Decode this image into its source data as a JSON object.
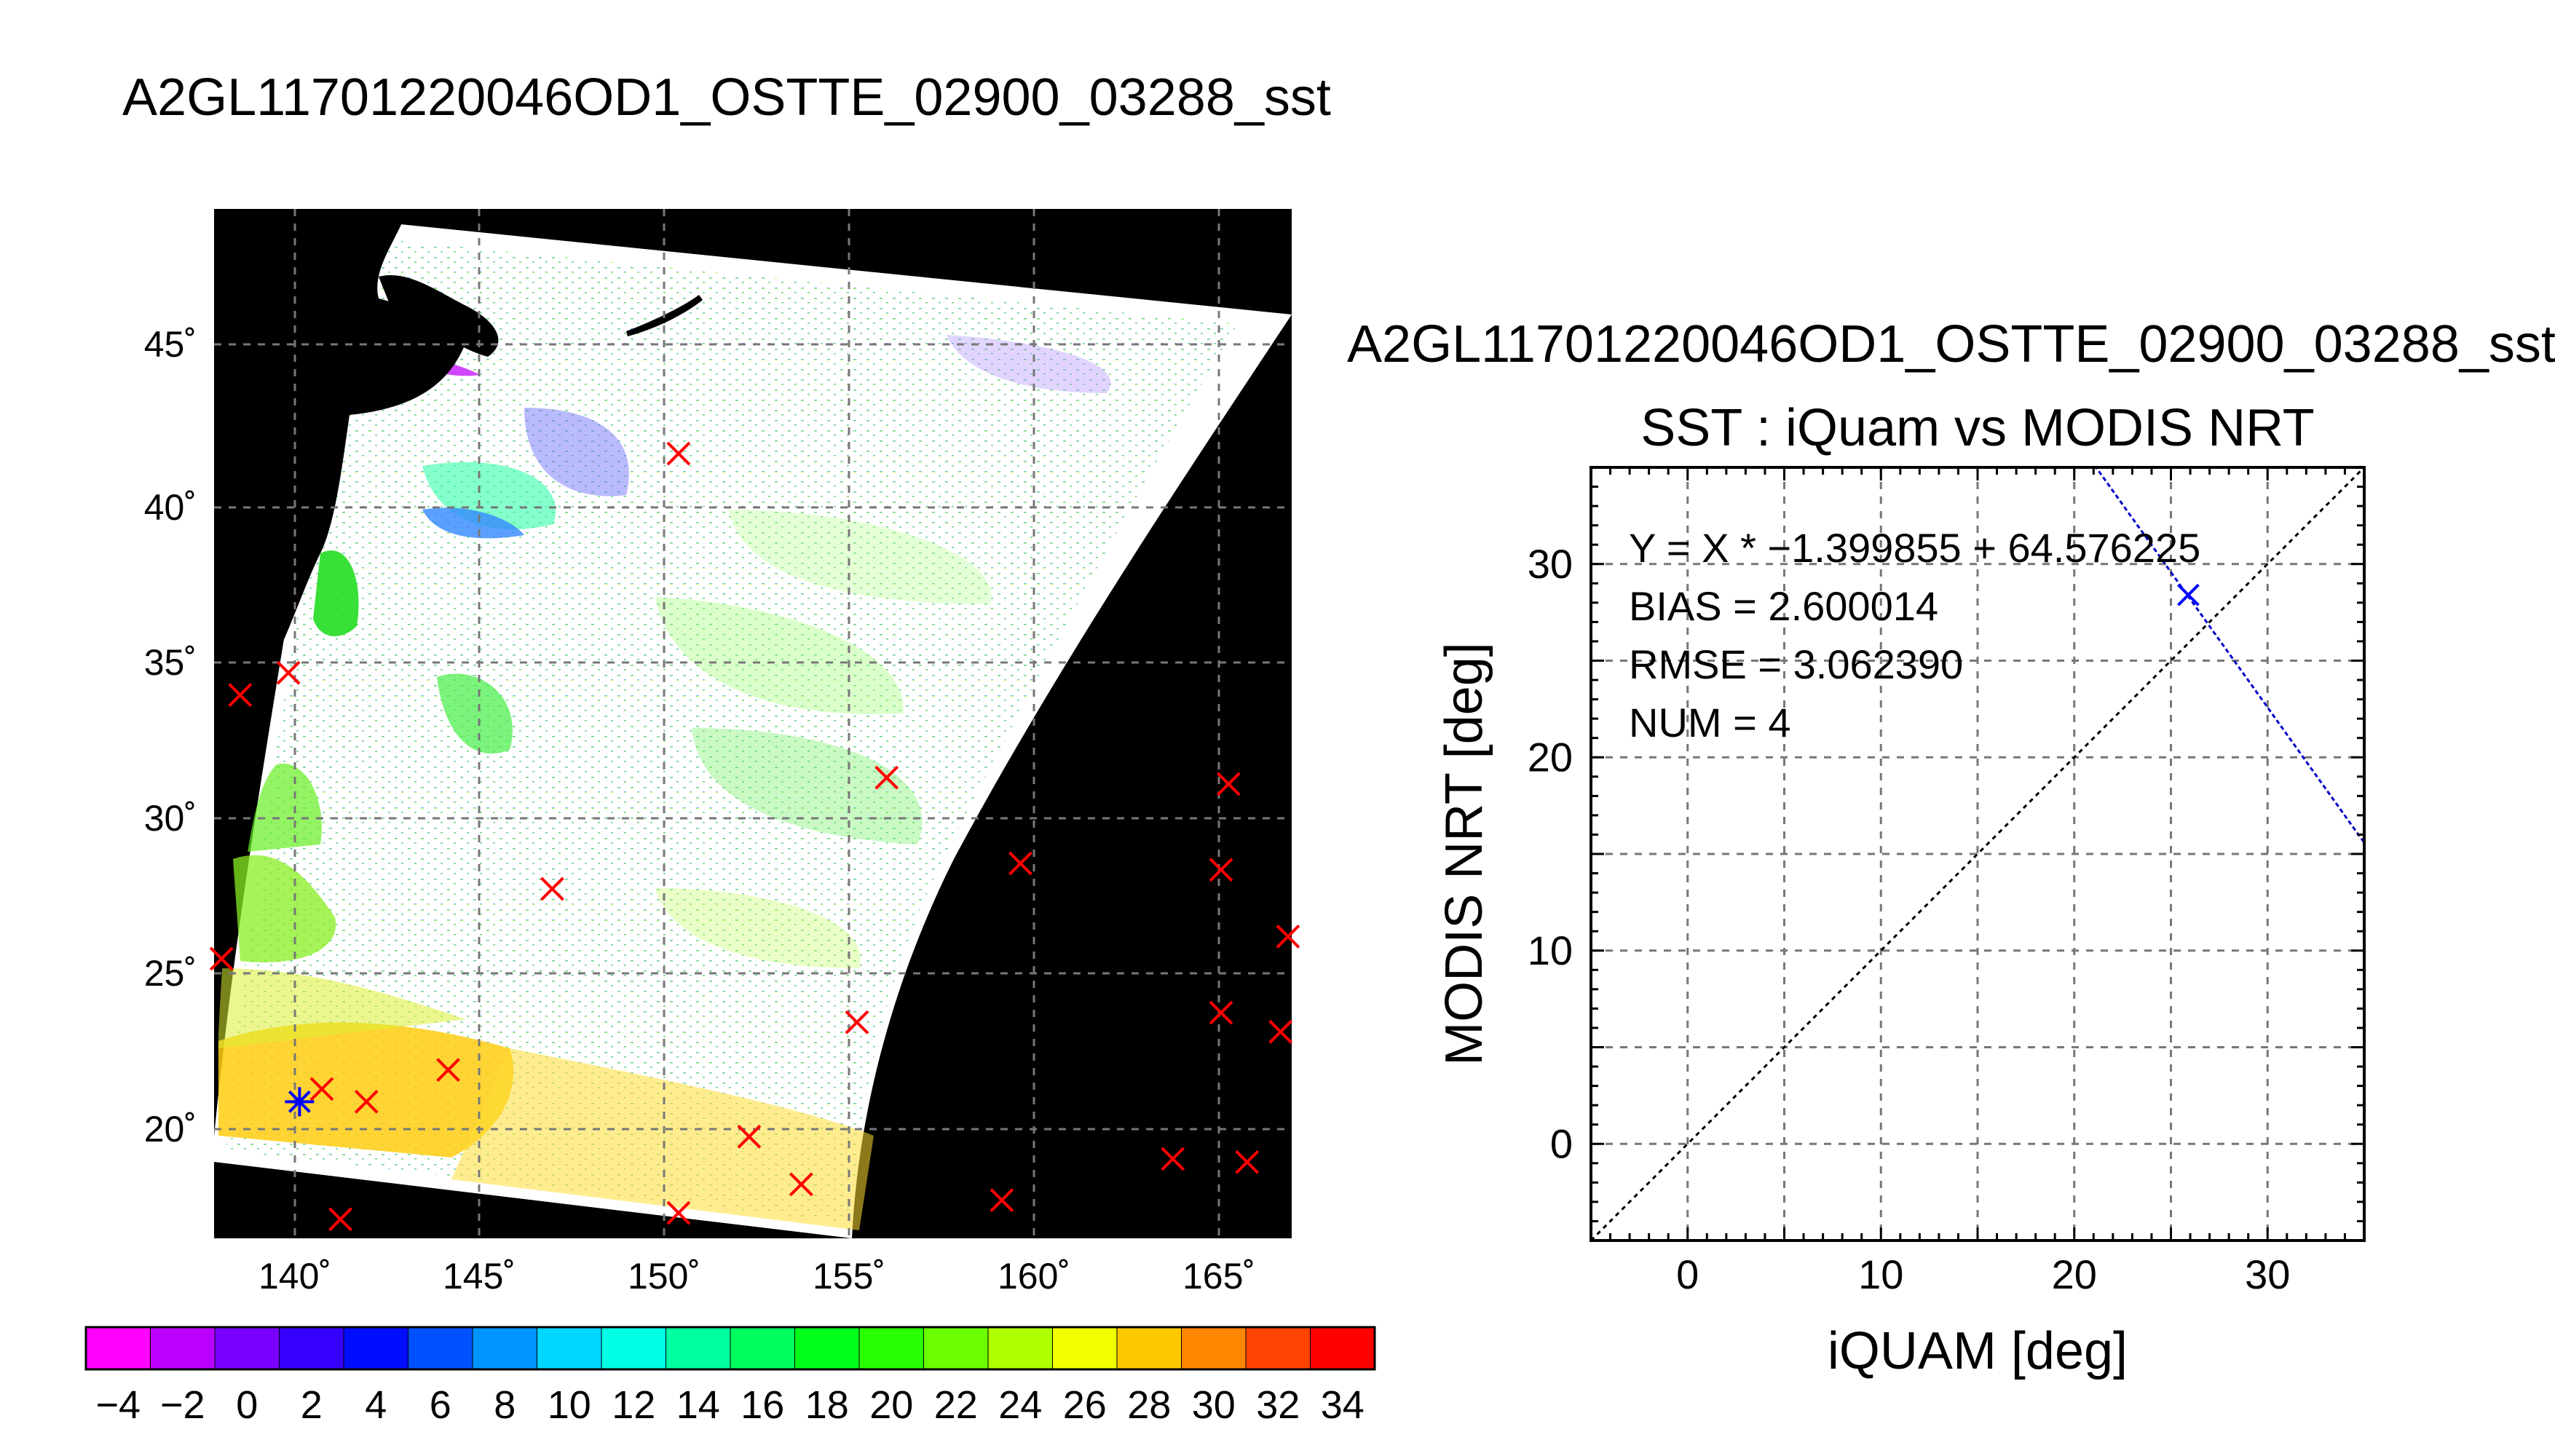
{
  "map_title": "A2GL11701220046OD1_OSTTE_02900_03288_sst",
  "scatter_title_line1": "A2GL11701220046OD1_OSTTE_02900_03288_sst",
  "scatter_title_line2": "SST : iQuam vs MODIS NRT",
  "colors": {
    "land": "#000000",
    "marker_red": "#ff0000",
    "marker_blue": "#0000ff",
    "fit_line": "#0000cc",
    "grid": "#777777"
  },
  "chart_data": [
    {
      "type": "heatmap",
      "title": "A2GL11701220046OD1_OSTTE_02900_03288_sst",
      "lon_ticks": [
        "140˚",
        "145˚",
        "150˚",
        "155˚",
        "160˚",
        "165˚"
      ],
      "lat_ticks": [
        "20˚",
        "25˚",
        "30˚",
        "35˚",
        "40˚",
        "45˚"
      ],
      "lon_range": [
        137.8,
        166.8
      ],
      "lat_range": [
        16.8,
        49.2
      ],
      "grid": true,
      "in_situ_points_red": [
        [
          141.2,
          17.4
        ],
        [
          150.3,
          17.6
        ],
        [
          153.6,
          18.5
        ],
        [
          159.0,
          18.0
        ],
        [
          163.6,
          19.3
        ],
        [
          165.6,
          19.2
        ],
        [
          152.2,
          20.0
        ],
        [
          141.9,
          21.1
        ],
        [
          140.7,
          21.5
        ],
        [
          144.1,
          22.1
        ],
        [
          155.1,
          23.6
        ],
        [
          164.9,
          23.9
        ],
        [
          166.5,
          23.3
        ],
        [
          166.7,
          26.3
        ],
        [
          138.0,
          25.6
        ],
        [
          146.9,
          27.8
        ],
        [
          159.5,
          28.6
        ],
        [
          164.9,
          28.4
        ],
        [
          165.1,
          31.1
        ],
        [
          155.9,
          31.3
        ],
        [
          138.5,
          33.9
        ],
        [
          139.8,
          34.6
        ],
        [
          150.3,
          41.5
        ]
      ],
      "matchup_points_blue": [
        [
          140.1,
          21.1
        ]
      ],
      "colorbar": {
        "ticks": [
          "−4",
          "−2",
          "0",
          "2",
          "4",
          "6",
          "8",
          "10",
          "12",
          "14",
          "16",
          "18",
          "20",
          "22",
          "24",
          "26",
          "28",
          "30",
          "32",
          "34"
        ],
        "range": [
          -5,
          35
        ]
      }
    },
    {
      "type": "scatter",
      "title": "SST : iQuam vs MODIS NRT",
      "xlabel": "iQUAM [deg]",
      "ylabel": "MODIS NRT [deg]",
      "xlim": [
        -5,
        35
      ],
      "ylim": [
        -5,
        35
      ],
      "x_ticks": [
        "0",
        "10",
        "20",
        "30"
      ],
      "y_ticks": [
        "0",
        "10",
        "20",
        "30"
      ],
      "x_tick_values": [
        0,
        10,
        20,
        30
      ],
      "y_tick_values": [
        0,
        10,
        20,
        30
      ],
      "grid": true,
      "points": [
        [
          25.9,
          28.4
        ]
      ],
      "fit": {
        "slope": -1.399855,
        "intercept": 64.576225
      },
      "one_to_one_line": true,
      "stats": [
        "Y = X * −1.399855 + 64.576225",
        "BIAS = 2.600014",
        "RMSE = 3.062390",
        "NUM = 4"
      ]
    }
  ]
}
